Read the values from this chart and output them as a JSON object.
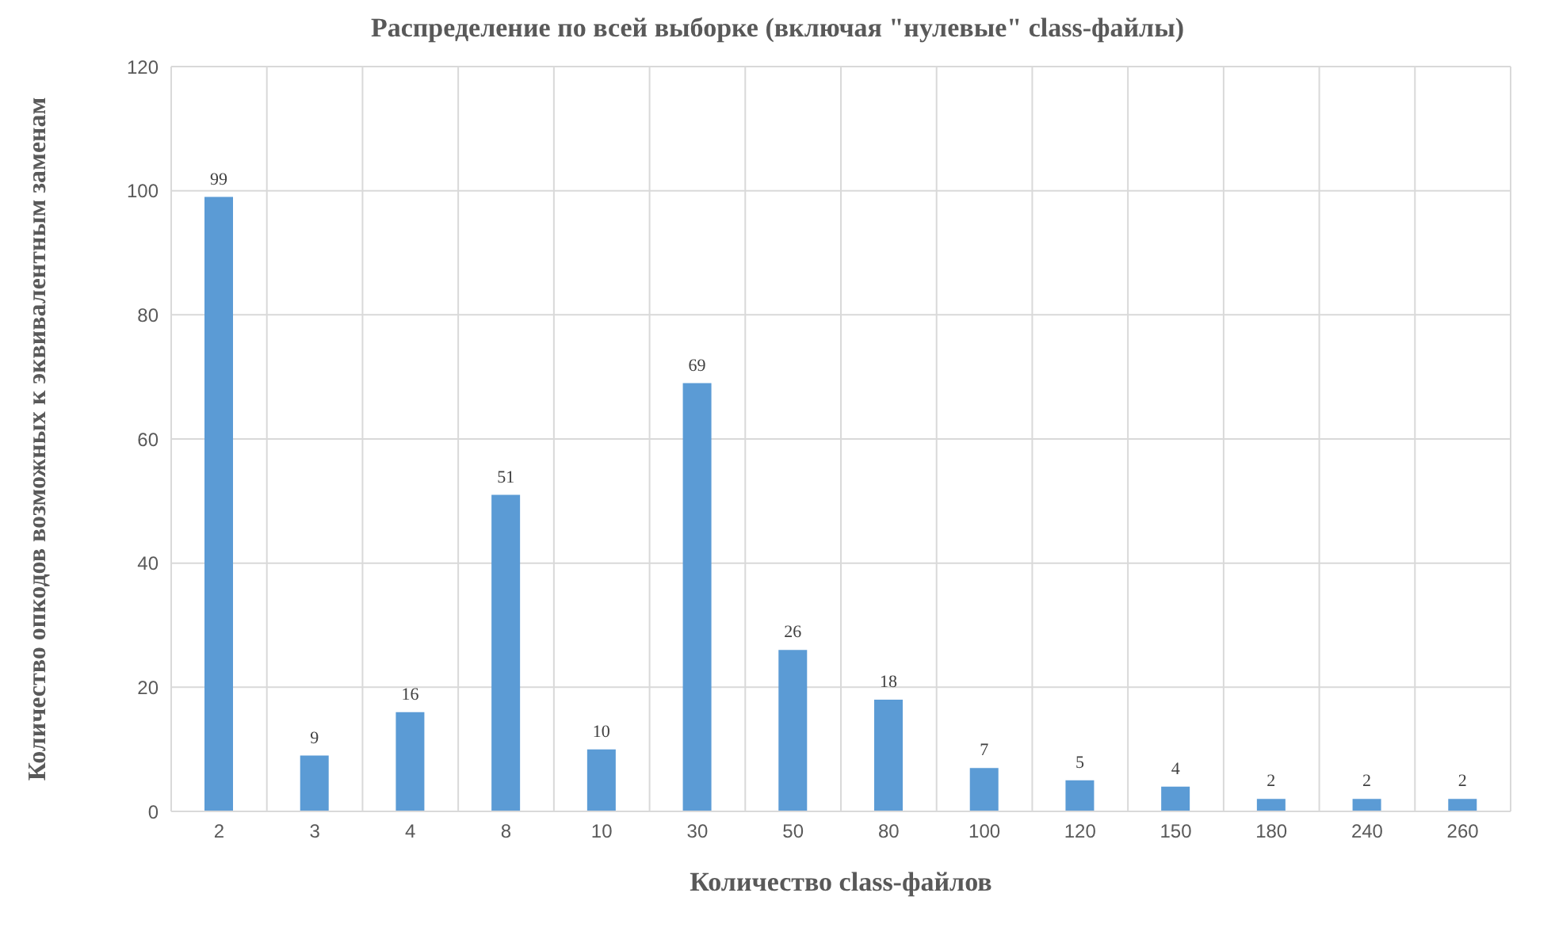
{
  "chart_data": {
    "type": "bar",
    "title": "Распределение  по всей выборке (включая \"нулевые\" class-файлы)",
    "xlabel": "Количество class-файлов",
    "ylabel": "Количество опкодов возможных к эквивалентным заменам",
    "categories": [
      "2",
      "3",
      "4",
      "8",
      "10",
      "30",
      "50",
      "80",
      "100",
      "120",
      "150",
      "180",
      "240",
      "260"
    ],
    "values": [
      99,
      9,
      16,
      51,
      10,
      69,
      26,
      18,
      7,
      5,
      4,
      2,
      2,
      2
    ],
    "color": "#5b9bd5",
    "ylim": [
      0,
      120
    ],
    "yticks": [
      0,
      20,
      40,
      60,
      80,
      100,
      120
    ],
    "grid": true,
    "data_labels": true
  }
}
